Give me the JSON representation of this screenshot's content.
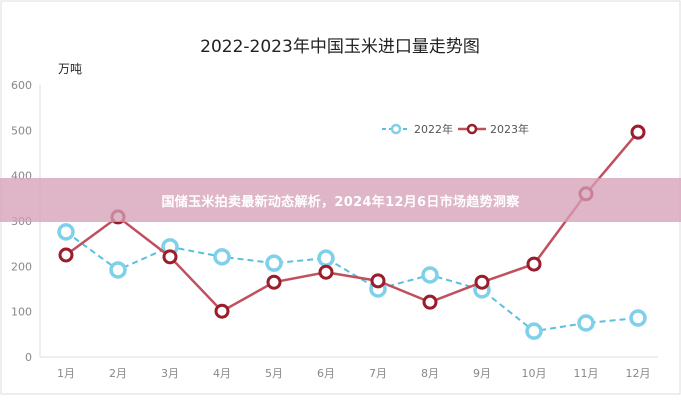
{
  "chart_data": {
    "type": "line",
    "title": "2022-2023年中国玉米进口量走势图",
    "ylabel": "万吨",
    "xlabel": "",
    "categories": [
      "1月",
      "2月",
      "3月",
      "4月",
      "5月",
      "6月",
      "7月",
      "8月",
      "9月",
      "10月",
      "11月",
      "12月"
    ],
    "ylim": [
      0,
      600
    ],
    "yticks": [
      0,
      100,
      200,
      300,
      400,
      500,
      600
    ],
    "grid": false,
    "legend": "top-right",
    "series": [
      {
        "name": "2022年",
        "color": "#5bc0de",
        "style": "dashed",
        "values": [
          276,
          192,
          243,
          221,
          207,
          218,
          150,
          181,
          148,
          57,
          75,
          86
        ]
      },
      {
        "name": "2023年",
        "color": "#c0505e",
        "style": "solid",
        "values": [
          225,
          309,
          221,
          101,
          165,
          187,
          168,
          121,
          165,
          205,
          360,
          496
        ]
      }
    ]
  },
  "banner": {
    "text": "国储玉米拍卖最新动态解析，2024年12月6日市场趋势洞察"
  }
}
